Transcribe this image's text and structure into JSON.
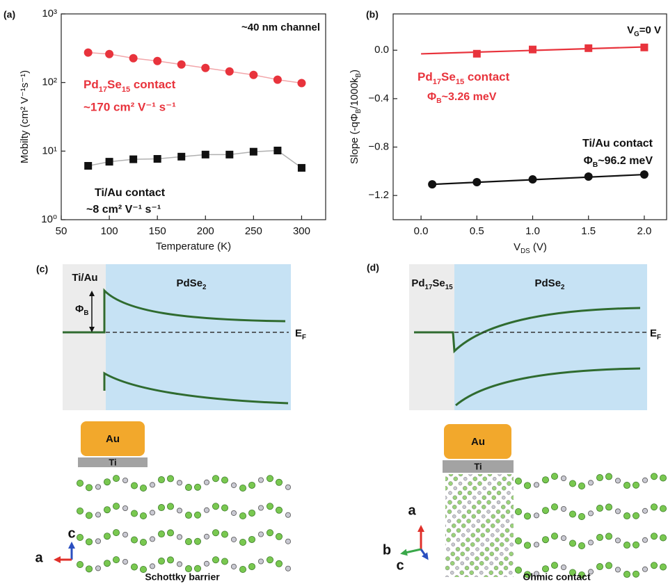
{
  "chart_data": [
    {
      "type": "line",
      "panel_label": "(a)",
      "x_label": "Temperature (K)",
      "y_label": "Mobilty (cm² V⁻¹s⁻¹)",
      "x": [
        78,
        100,
        125,
        150,
        175,
        200,
        225,
        250,
        275,
        300
      ],
      "series": [
        {
          "color": "#e8333c",
          "line_color": "#f2a6aa",
          "marker": "circle",
          "values": [
            273,
            260,
            226,
            206,
            183,
            163,
            145,
            129,
            110,
            98
          ]
        },
        {
          "color": "#111111",
          "line_color": "#b0b0b0",
          "marker": "square",
          "values": [
            6.1,
            7.0,
            7.6,
            7.7,
            8.3,
            8.9,
            8.9,
            9.8,
            10.2,
            5.7
          ]
        }
      ],
      "xlim": [
        50,
        325
      ],
      "ylim": [
        1,
        1000
      ],
      "ylog": true,
      "xticks": [
        50,
        100,
        150,
        200,
        250,
        300
      ],
      "yticks": [
        {
          "value": 1,
          "label": "10⁰"
        },
        {
          "value": 10,
          "label": "10¹"
        },
        {
          "value": 100,
          "label": "10²"
        },
        {
          "value": 1000,
          "label": "10³"
        }
      ],
      "annotations": [
        {
          "text": "~40 nm channel",
          "color": "#111111"
        },
        {
          "text": [
            "Pd",
            "17",
            "Se",
            "15",
            " contact"
          ],
          "color": "#e8333c"
        },
        {
          "text": "~170 cm² V⁻¹ s⁻¹",
          "color": "#e8333c"
        },
        {
          "text": "Ti/Au contact",
          "color": "#111111"
        },
        {
          "text": "~8 cm² V⁻¹ s⁻¹",
          "color": "#111111"
        }
      ]
    },
    {
      "type": "scatter",
      "panel_label": "(b)",
      "x_label": [
        "V",
        "DS",
        " (V)"
      ],
      "y_label": [
        "Slope (-qΦ",
        "B",
        "/1000k",
        "B",
        ")"
      ],
      "series": [
        {
          "color": "#e8333c",
          "marker": "square",
          "x": [
            0.5,
            1.0,
            1.5,
            2.0
          ],
          "values": [
            -0.029,
            0.006,
            0.017,
            0.023
          ],
          "fit_x": [
            0.0,
            2.0
          ],
          "fit_values": [
            -0.03,
            0.027
          ]
        },
        {
          "color": "#111111",
          "marker": "circle",
          "x": [
            0.1,
            0.5,
            1.0,
            1.5,
            2.0
          ],
          "values": [
            -1.108,
            -1.09,
            -1.067,
            -1.044,
            -1.027
          ],
          "fit_x": [
            0.1,
            2.0
          ],
          "fit_values": [
            -1.108,
            -1.027
          ]
        }
      ],
      "xlim": [
        -0.25,
        2.2
      ],
      "ylim": [
        -1.4,
        0.3
      ],
      "xticks": [
        {
          "value": 0,
          "label": "0.0"
        },
        {
          "value": 0.5,
          "label": "0.5"
        },
        {
          "value": 1,
          "label": "1.0"
        },
        {
          "value": 1.5,
          "label": "1.5"
        },
        {
          "value": 2,
          "label": "2.0"
        }
      ],
      "yticks": [
        {
          "value": 0,
          "label": "0.0"
        },
        {
          "value": -0.4,
          "label": "−0.4"
        },
        {
          "value": -0.8,
          "label": "−0.8"
        },
        {
          "value": -1.2,
          "label": "−1.2"
        }
      ],
      "annotations": [
        {
          "text": [
            "V",
            "G",
            "=0 V"
          ],
          "color": "#111111"
        },
        {
          "text": [
            "Pd",
            "17",
            "Se",
            "15",
            " contact"
          ],
          "color": "#e8333c"
        },
        {
          "text": [
            "Φ",
            "B",
            "~3.26 meV"
          ],
          "color": "#e8333c"
        },
        {
          "text": "Ti/Au contact",
          "color": "#111111"
        },
        {
          "text": [
            "Φ",
            "B",
            "~96.2 meV"
          ],
          "color": "#111111"
        }
      ]
    }
  ],
  "diagrams": [
    {
      "panel_label": "(c)",
      "metal_label": "Ti/Au",
      "semiconductor_label": [
        "PdSe",
        "2"
      ],
      "barrier_label": [
        "Φ",
        "B"
      ],
      "fermi_label": [
        "E",
        "F"
      ],
      "electrode_top": "Au",
      "electrode_bottom": "Ti",
      "axes": [
        "c",
        "a"
      ],
      "caption": "Schottky barrier"
    },
    {
      "panel_label": "(d)",
      "metal_label": [
        "Pd",
        "17",
        "Se",
        "15"
      ],
      "semiconductor_label": [
        "PdSe",
        "2"
      ],
      "fermi_label": [
        "E",
        "F"
      ],
      "electrode_top": "Au",
      "electrode_bottom": "Ti",
      "axes": [
        "a",
        "b",
        "c"
      ],
      "caption": "Ohmic contact"
    }
  ]
}
